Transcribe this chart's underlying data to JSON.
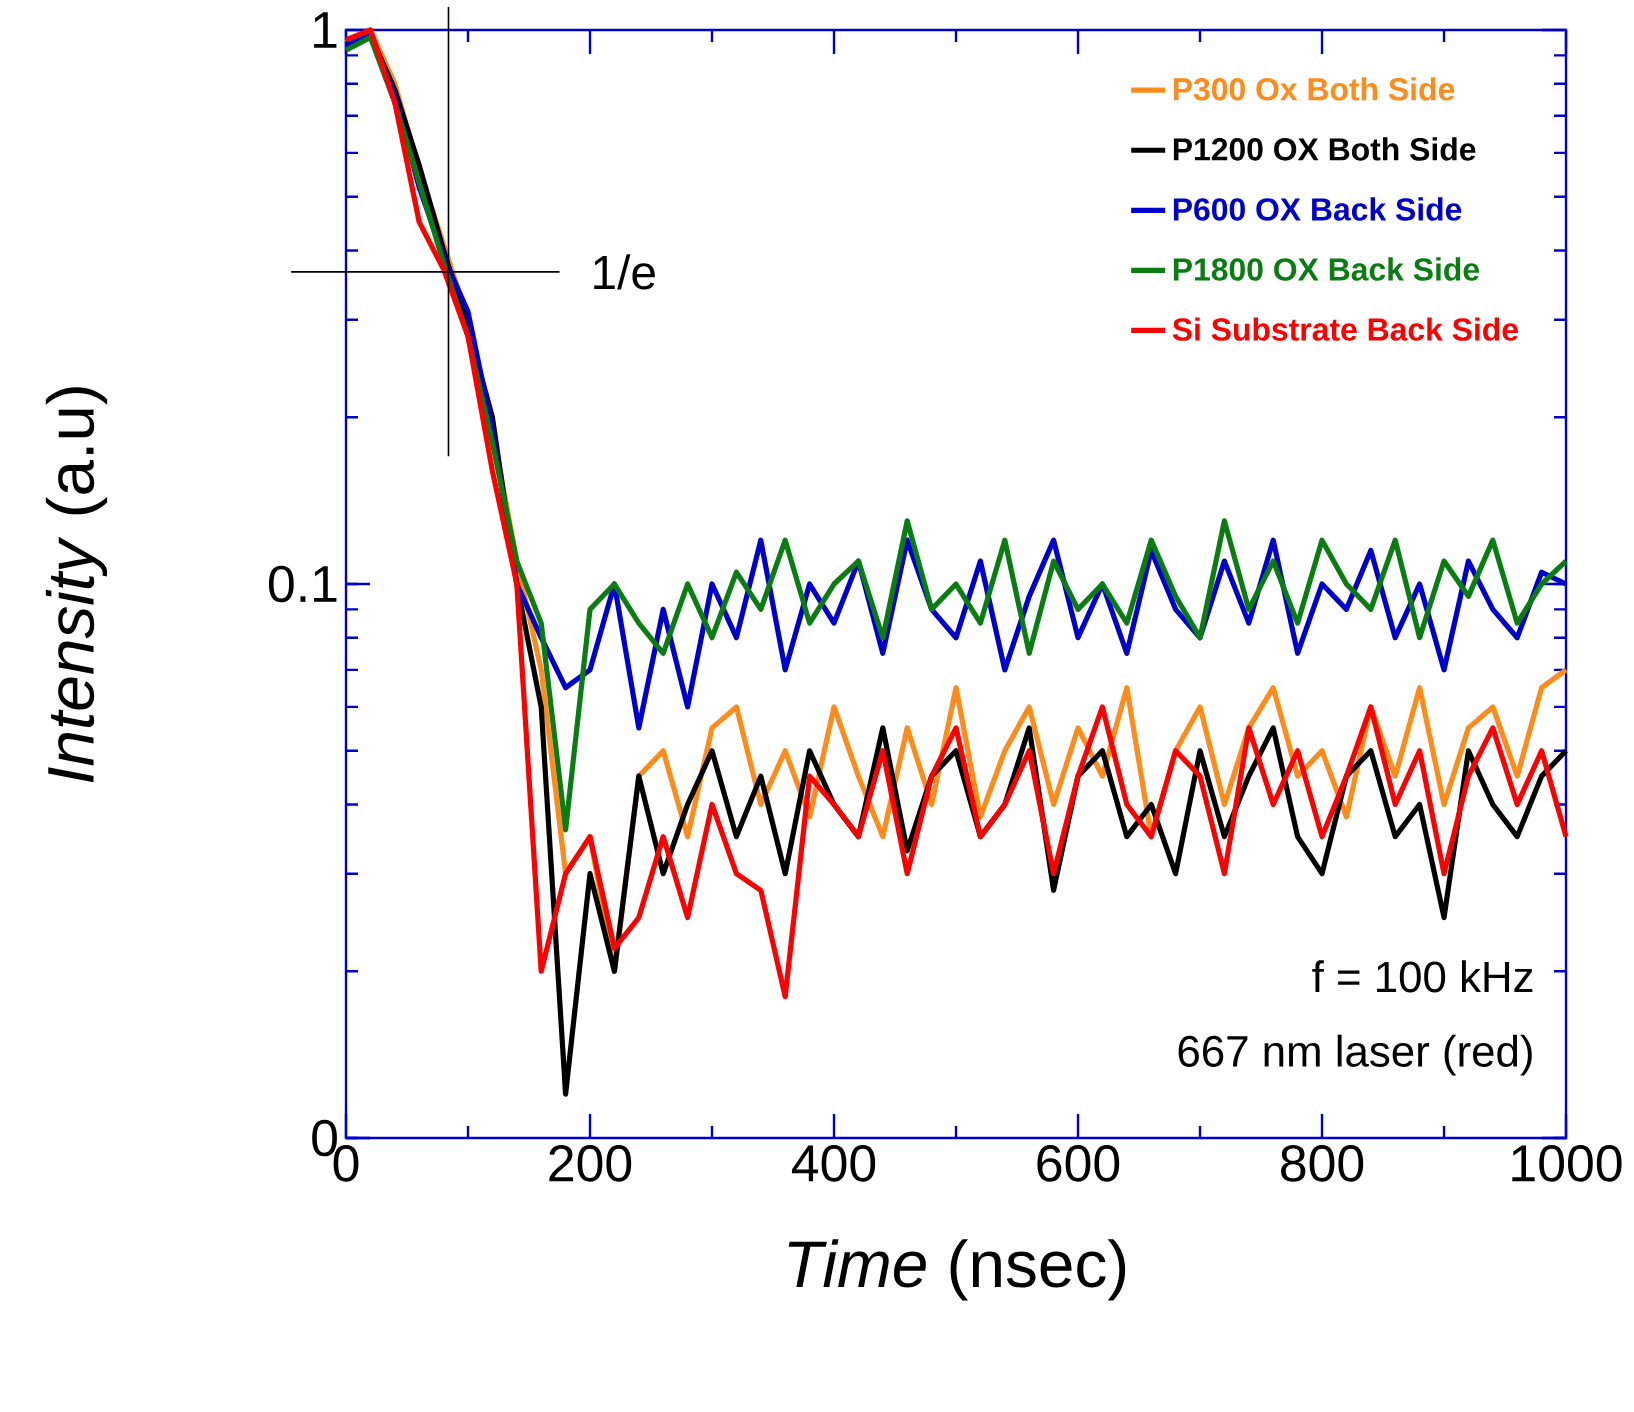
{
  "chart_data": {
    "type": "line",
    "xlabel": "*Time* (nsec)",
    "ylabel": "*Intensity* (a.u)",
    "log": "y",
    "xlim": [
      0,
      1000
    ],
    "xticks": [
      0,
      200,
      400,
      600,
      800,
      1000
    ],
    "ylim": [
      0.01,
      1
    ],
    "yticks": [
      {
        "value": 0.01,
        "label": "0"
      },
      0.1,
      1
    ],
    "legend": "top right",
    "x": [
      0,
      20,
      40,
      60,
      80,
      100,
      120,
      140,
      160,
      180,
      200,
      220,
      240,
      260,
      280,
      300,
      320,
      340,
      360,
      380,
      400,
      420,
      440,
      460,
      480,
      500,
      520,
      540,
      560,
      580,
      600,
      620,
      640,
      660,
      680,
      700,
      720,
      740,
      760,
      780,
      800,
      820,
      840,
      860,
      880,
      900,
      920,
      940,
      960,
      980,
      1000
    ],
    "series": [
      {
        "name": "P300 Ox Both Side",
        "color": "#ff8c1a",
        "values": [
          0.95,
          1.0,
          0.8,
          0.56,
          0.41,
          0.3,
          0.19,
          0.11,
          0.07,
          0.03,
          0.035,
          0.02,
          0.045,
          0.05,
          0.035,
          0.055,
          0.06,
          0.04,
          0.05,
          0.038,
          0.06,
          0.045,
          0.035,
          0.055,
          0.04,
          0.065,
          0.038,
          0.05,
          0.06,
          0.04,
          0.055,
          0.045,
          0.065,
          0.035,
          0.05,
          0.06,
          0.04,
          0.055,
          0.065,
          0.045,
          0.05,
          0.038,
          0.06,
          0.045,
          0.065,
          0.04,
          0.055,
          0.06,
          0.045,
          0.065,
          0.07
        ]
      },
      {
        "name": "P1200 OX Both Side",
        "color": "#000000",
        "values": [
          0.96,
          0.98,
          0.78,
          0.57,
          0.4,
          0.29,
          0.2,
          0.1,
          0.06,
          0.012,
          0.03,
          0.02,
          0.045,
          0.03,
          0.04,
          0.05,
          0.035,
          0.045,
          0.03,
          0.05,
          0.04,
          0.035,
          0.055,
          0.033,
          0.045,
          0.05,
          0.035,
          0.04,
          0.055,
          0.028,
          0.045,
          0.05,
          0.035,
          0.04,
          0.03,
          0.05,
          0.035,
          0.045,
          0.055,
          0.035,
          0.03,
          0.045,
          0.05,
          0.035,
          0.04,
          0.025,
          0.05,
          0.04,
          0.035,
          0.045,
          0.05
        ]
      },
      {
        "name": "P600 OX Back Side",
        "color": "#0000cc",
        "values": [
          0.94,
          0.99,
          0.76,
          0.52,
          0.39,
          0.31,
          0.19,
          0.1,
          0.08,
          0.065,
          0.07,
          0.1,
          0.055,
          0.09,
          0.06,
          0.1,
          0.08,
          0.12,
          0.07,
          0.1,
          0.085,
          0.11,
          0.075,
          0.12,
          0.09,
          0.08,
          0.11,
          0.07,
          0.095,
          0.12,
          0.08,
          0.1,
          0.075,
          0.115,
          0.09,
          0.08,
          0.11,
          0.085,
          0.12,
          0.075,
          0.1,
          0.09,
          0.115,
          0.08,
          0.1,
          0.07,
          0.11,
          0.09,
          0.08,
          0.105,
          0.1
        ]
      },
      {
        "name": "P1800 OX Back Side",
        "color": "#0a7d12",
        "values": [
          0.92,
          0.97,
          0.74,
          0.53,
          0.38,
          0.28,
          0.18,
          0.11,
          0.085,
          0.036,
          0.09,
          0.1,
          0.085,
          0.075,
          0.1,
          0.08,
          0.105,
          0.09,
          0.12,
          0.085,
          0.1,
          0.11,
          0.08,
          0.13,
          0.09,
          0.1,
          0.085,
          0.12,
          0.075,
          0.11,
          0.09,
          0.1,
          0.085,
          0.12,
          0.095,
          0.08,
          0.13,
          0.09,
          0.11,
          0.085,
          0.12,
          0.1,
          0.09,
          0.12,
          0.08,
          0.11,
          0.095,
          0.12,
          0.085,
          0.1,
          0.11
        ]
      },
      {
        "name": "Si Substrate Back Side",
        "color": "#ff0000",
        "values": [
          0.96,
          1.0,
          0.74,
          0.45,
          0.37,
          0.28,
          0.16,
          0.1,
          0.02,
          0.03,
          0.035,
          0.022,
          0.025,
          0.035,
          0.025,
          0.04,
          0.03,
          0.028,
          0.018,
          0.045,
          0.04,
          0.035,
          0.05,
          0.03,
          0.045,
          0.055,
          0.035,
          0.04,
          0.05,
          0.03,
          0.045,
          0.06,
          0.04,
          0.035,
          0.05,
          0.045,
          0.03,
          0.055,
          0.04,
          0.05,
          0.035,
          0.045,
          0.06,
          0.04,
          0.05,
          0.03,
          0.045,
          0.055,
          0.04,
          0.05,
          0.035
        ]
      }
    ],
    "ref_lines": [
      {
        "axis": "x",
        "value": 84
      },
      {
        "axis": "y",
        "value": 0.366,
        "label": "1/e"
      }
    ],
    "annotations": [
      "f = 100 kHz",
      "667 nm laser (red)"
    ]
  }
}
